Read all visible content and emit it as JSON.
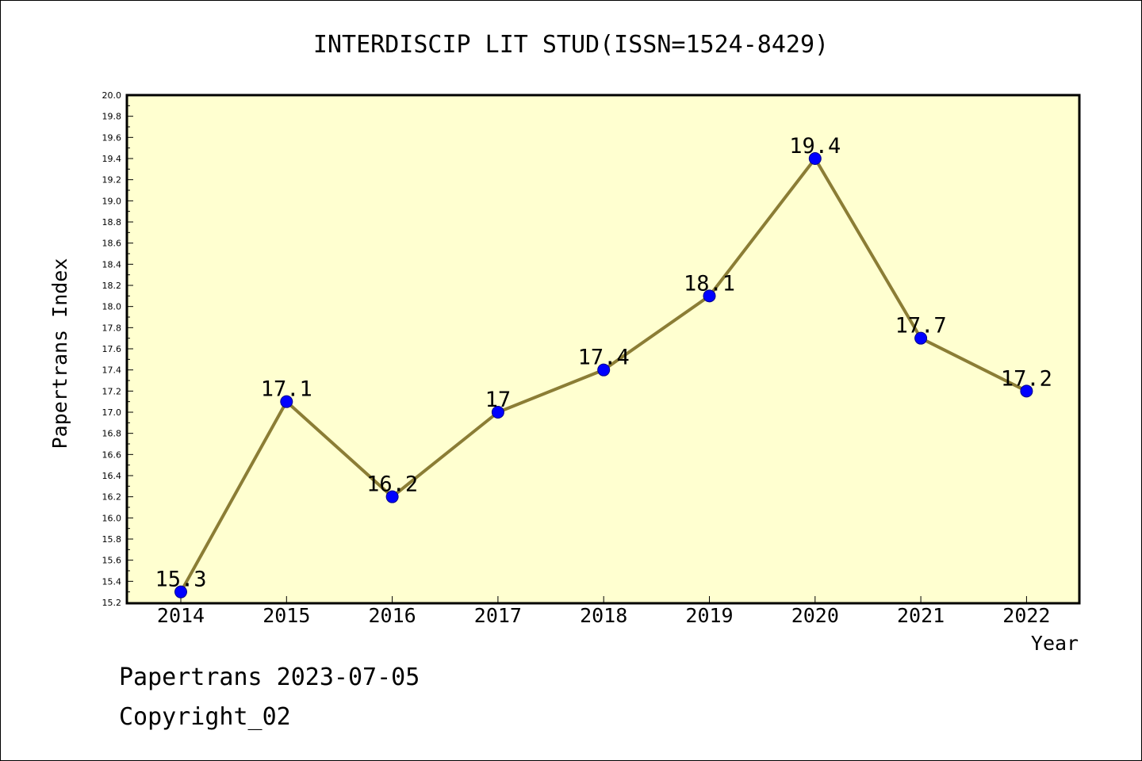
{
  "chart_data": {
    "type": "line",
    "title": "INTERDISCIP LIT STUD(ISSN=1524-8429)",
    "xlabel": "Year",
    "ylabel": "Papertrans Index",
    "categories": [
      "2014",
      "2015",
      "2016",
      "2017",
      "2018",
      "2019",
      "2020",
      "2021",
      "2022"
    ],
    "values": [
      15.3,
      17.1,
      16.2,
      17.0,
      17.4,
      18.1,
      19.4,
      17.7,
      17.2
    ],
    "data_labels": [
      "15.3",
      "17.1",
      "16.2",
      "17",
      "17.4",
      "18.1",
      "19.4",
      "17.7",
      "17.2"
    ],
    "ylim": [
      15.2,
      20.0
    ],
    "y_ticks": [
      "15.2",
      "15.4",
      "15.6",
      "15.8",
      "16.0",
      "16.2",
      "16.4",
      "16.6",
      "16.8",
      "17.0",
      "17.2",
      "17.4",
      "17.6",
      "17.8",
      "18.0",
      "18.2",
      "18.4",
      "18.6",
      "18.8",
      "19.0",
      "19.2",
      "19.4",
      "19.6",
      "19.8",
      "20.0"
    ],
    "grid": false,
    "legend": "none",
    "colors": {
      "plot_background": "#ffffd0",
      "line": "#8b7d35",
      "marker": "#0000ff",
      "marker_edge": "#00008b"
    }
  },
  "footer": {
    "line1": "Papertrans 2023-07-05",
    "line2": "Copyright_02"
  }
}
